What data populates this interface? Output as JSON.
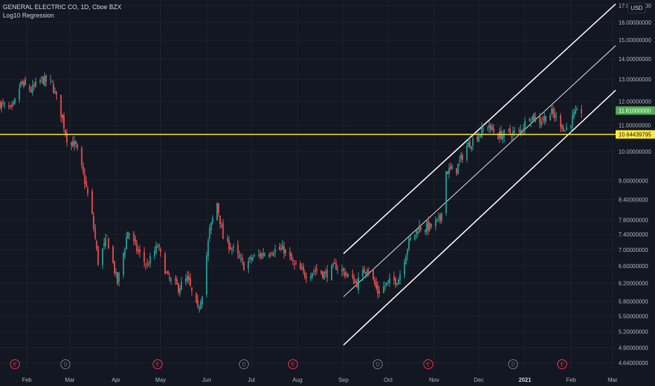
{
  "header": {
    "symbol_line": "GENERAL ELECTRIC CO, 1D, Cboe BZX",
    "indicator_line": "Log10 Regression"
  },
  "currency_button": "USD",
  "price_axis": {
    "labels": [
      "17.00000000",
      "16.00000000",
      "15.00000000",
      "14.00000000",
      "13.00000000",
      "12.00000000",
      "11.00000000",
      "10.00000000",
      "9.00000000",
      "8.40000000",
      "7.80000000",
      "7.40000000",
      "7.00000000",
      "6.60000000",
      "6.20000000",
      "5.80000000",
      "5.50000000",
      "5.20000000",
      "4.90000000",
      "4.64000000"
    ],
    "scale": "log"
  },
  "time_axis": {
    "labels": [
      "Feb",
      "Mar",
      "Apr",
      "May",
      "Jun",
      "Jul",
      "Aug",
      "Sep",
      "Oct",
      "Nov",
      "Dec",
      "2021",
      "Feb",
      "Mar"
    ]
  },
  "last_price": {
    "label": "11.61000000",
    "color": "#4caf50"
  },
  "horizontal_line": {
    "label": "10.64439795",
    "value": 10.64439795,
    "color": "#ffeb3b"
  },
  "events": [
    {
      "type": "E",
      "color": "#f23645"
    },
    {
      "type": "D",
      "color": "#787b86"
    },
    {
      "type": "E",
      "color": "#f23645"
    },
    {
      "type": "D",
      "color": "#787b86"
    },
    {
      "type": "E",
      "color": "#f23645"
    },
    {
      "type": "D",
      "color": "#787b86"
    },
    {
      "type": "E",
      "color": "#f23645"
    },
    {
      "type": "D",
      "color": "#787b86"
    },
    {
      "type": "E",
      "color": "#f23645"
    }
  ],
  "colors": {
    "up": "#26a69a",
    "down": "#ef5350",
    "background": "#131722",
    "grid": "#1e222d",
    "channel": "#ffffff"
  },
  "chart_data": {
    "type": "candlestick",
    "title": "GENERAL ELECTRIC CO, 1D, Cboe BZX",
    "y_scale": "log",
    "ylim": [
      4.55,
      17.1
    ],
    "x_range": [
      "2020-01-14",
      "2021-03-03"
    ],
    "close_series": [
      [
        "2020-01-14",
        11.9
      ],
      [
        "2020-01-22",
        11.6
      ],
      [
        "2020-01-28",
        12.8
      ],
      [
        "2020-02-04",
        12.5
      ],
      [
        "2020-02-11",
        13.0
      ],
      [
        "2020-02-18",
        12.8
      ],
      [
        "2020-02-24",
        11.5
      ],
      [
        "2020-02-28",
        10.5
      ],
      [
        "2020-03-05",
        10.2
      ],
      [
        "2020-03-11",
        9.0
      ],
      [
        "2020-03-16",
        7.9
      ],
      [
        "2020-03-20",
        6.7
      ],
      [
        "2020-03-26",
        7.3
      ],
      [
        "2020-04-02",
        6.2
      ],
      [
        "2020-04-09",
        7.5
      ],
      [
        "2020-04-15",
        7.0
      ],
      [
        "2020-04-22",
        6.6
      ],
      [
        "2020-04-29",
        7.1
      ],
      [
        "2020-05-06",
        6.3
      ],
      [
        "2020-05-13",
        6.1
      ],
      [
        "2020-05-19",
        6.3
      ],
      [
        "2020-05-26",
        5.6
      ],
      [
        "2020-05-29",
        6.0
      ],
      [
        "2020-06-03",
        7.5
      ],
      [
        "2020-06-08",
        8.3
      ],
      [
        "2020-06-12",
        7.3
      ],
      [
        "2020-06-19",
        7.0
      ],
      [
        "2020-06-26",
        6.6
      ],
      [
        "2020-07-02",
        6.8
      ],
      [
        "2020-07-09",
        6.9
      ],
      [
        "2020-07-16",
        7.0
      ],
      [
        "2020-07-23",
        7.0
      ],
      [
        "2020-07-30",
        6.6
      ],
      [
        "2020-08-06",
        6.4
      ],
      [
        "2020-08-13",
        6.5
      ],
      [
        "2020-08-20",
        6.4
      ],
      [
        "2020-08-27",
        6.6
      ],
      [
        "2020-09-03",
        6.4
      ],
      [
        "2020-09-10",
        6.2
      ],
      [
        "2020-09-17",
        6.6
      ],
      [
        "2020-09-24",
        6.0
      ],
      [
        "2020-10-01",
        6.2
      ],
      [
        "2020-10-08",
        6.3
      ],
      [
        "2020-10-15",
        7.2
      ],
      [
        "2020-10-22",
        7.6
      ],
      [
        "2020-10-29",
        7.6
      ],
      [
        "2020-11-05",
        7.8
      ],
      [
        "2020-11-09",
        9.3
      ],
      [
        "2020-11-16",
        9.4
      ],
      [
        "2020-11-23",
        10.2
      ],
      [
        "2020-11-30",
        10.6
      ],
      [
        "2020-12-07",
        11.0
      ],
      [
        "2020-12-14",
        10.6
      ],
      [
        "2020-12-21",
        10.7
      ],
      [
        "2020-12-28",
        10.7
      ],
      [
        "2021-01-04",
        11.4
      ],
      [
        "2021-01-11",
        11.2
      ],
      [
        "2021-01-19",
        11.5
      ],
      [
        "2021-01-25",
        11.1
      ],
      [
        "2021-01-28",
        10.8
      ],
      [
        "2021-02-03",
        11.4
      ],
      [
        "2021-02-08",
        11.61
      ]
    ],
    "regression_channel": {
      "type": "Log10 Regression",
      "start": "2020-09-01",
      "end": "2021-03-03",
      "upper": [
        6.9,
        17.1
      ],
      "mid": [
        5.9,
        14.7
      ],
      "lower": [
        4.95,
        12.5
      ]
    }
  }
}
